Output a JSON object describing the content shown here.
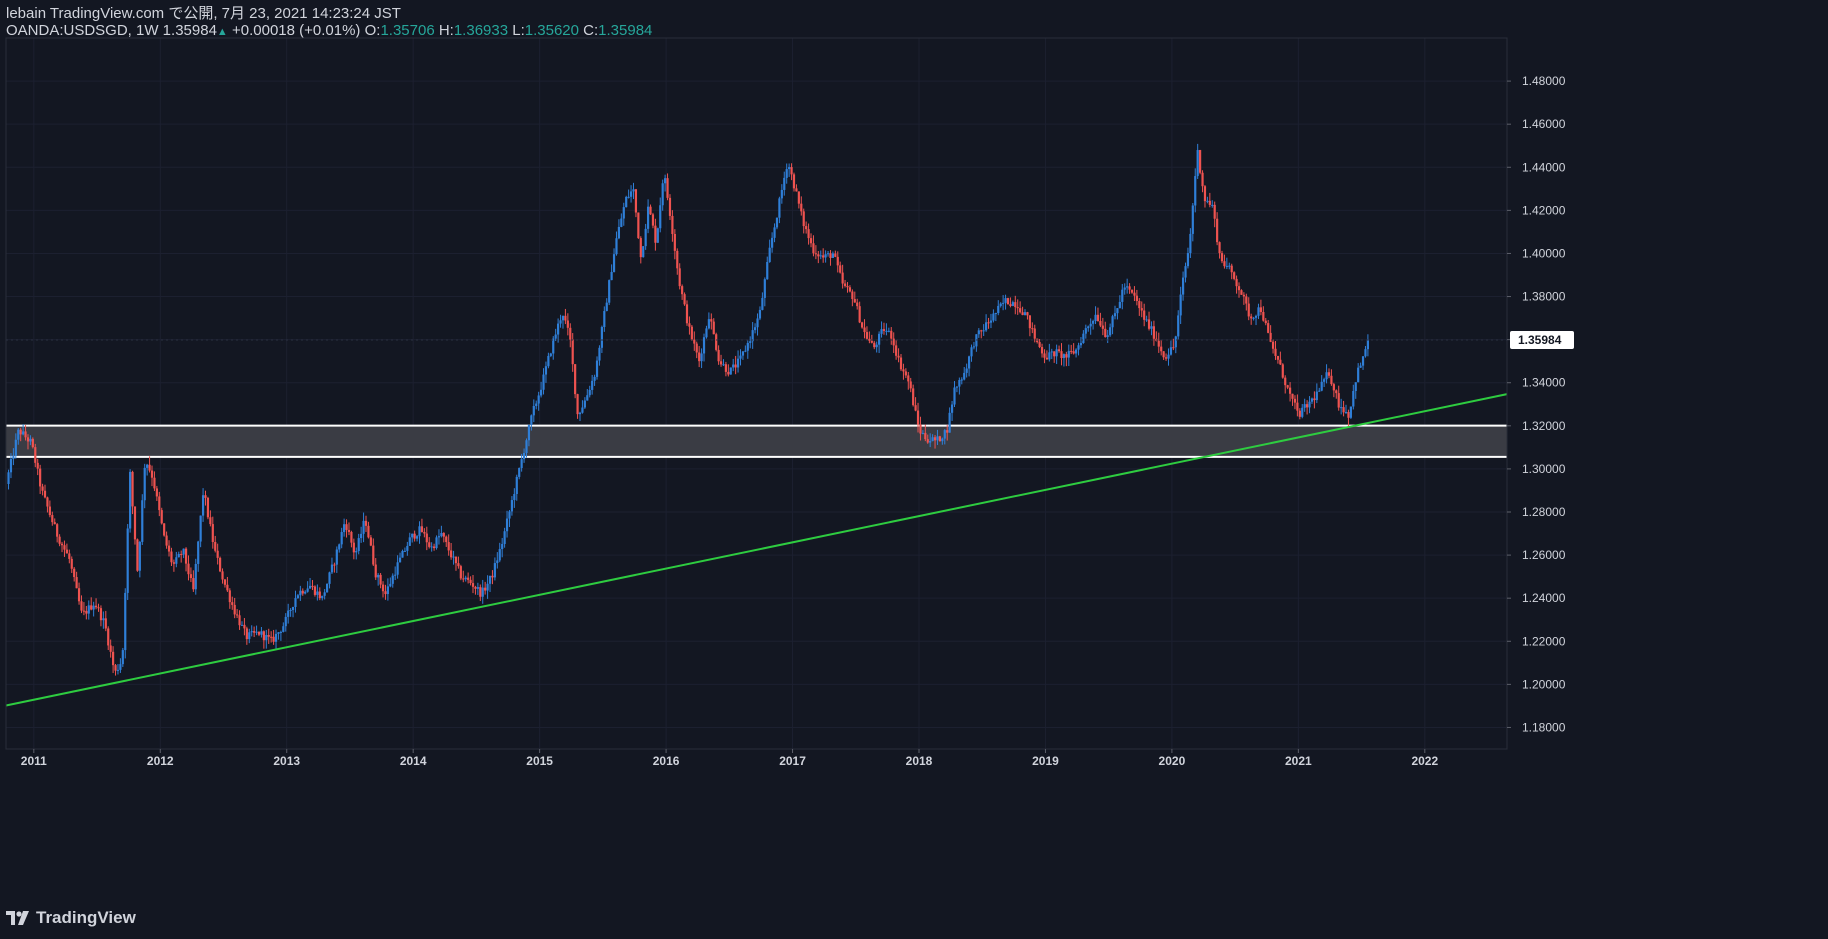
{
  "header": {
    "author_line": "lebain TradingView.com で公開, 7月 23, 2021 14:23:24 JST",
    "symbol_label": "OANDA:USDSGD, 1W 1.35984",
    "change": "+0.00018 (+0.01%)",
    "open_label": "O:",
    "open_value": "1.35706",
    "high_label": "H:",
    "high_value": "1.36933",
    "low_label": "L:",
    "low_value": "1.35620",
    "close_label": "C:",
    "close_value": "1.35984"
  },
  "footer": {
    "brand": "TradingView"
  },
  "colors": {
    "background": "#131722",
    "up": "#2f7fd8",
    "down": "#ef5350",
    "trendline": "#2ecc40",
    "zone_fill": "#3a3c44",
    "zone_border": "#ffffff",
    "axis_text": "#d1d4dc",
    "price_tag_bg": "#ffffff",
    "price_tag_text": "#131722"
  },
  "chart_data": {
    "type": "candlestick",
    "interval": "1W",
    "symbol": "OANDA:USDSGD",
    "ylim": [
      1.17,
      1.5
    ],
    "xlim": [
      2010.78,
      2022.65
    ],
    "y_ticks": [
      "1.48000",
      "1.46000",
      "1.44000",
      "1.42000",
      "1.40000",
      "1.38000",
      "1.36000",
      "1.34000",
      "1.32000",
      "1.30000",
      "1.28000",
      "1.26000",
      "1.24000",
      "1.22000",
      "1.20000",
      "1.18000"
    ],
    "x_ticks": [
      "2011",
      "2012",
      "2013",
      "2014",
      "2015",
      "2016",
      "2017",
      "2018",
      "2019",
      "2020",
      "2021",
      "2022"
    ],
    "last_price": "1.35984",
    "path": [
      [
        2010.8,
        1.293
      ],
      [
        2010.9,
        1.318
      ],
      [
        2011.0,
        1.312
      ],
      [
        2011.08,
        1.29
      ],
      [
        2011.2,
        1.27
      ],
      [
        2011.3,
        1.258
      ],
      [
        2011.4,
        1.232
      ],
      [
        2011.5,
        1.238
      ],
      [
        2011.58,
        1.228
      ],
      [
        2011.66,
        1.205
      ],
      [
        2011.72,
        1.212
      ],
      [
        2011.78,
        1.298
      ],
      [
        2011.84,
        1.252
      ],
      [
        2011.9,
        1.305
      ],
      [
        2011.96,
        1.296
      ],
      [
        2012.05,
        1.268
      ],
      [
        2012.12,
        1.255
      ],
      [
        2012.2,
        1.262
      ],
      [
        2012.28,
        1.243
      ],
      [
        2012.36,
        1.29
      ],
      [
        2012.45,
        1.262
      ],
      [
        2012.52,
        1.248
      ],
      [
        2012.6,
        1.235
      ],
      [
        2012.7,
        1.222
      ],
      [
        2012.8,
        1.224
      ],
      [
        2012.9,
        1.22
      ],
      [
        2013.0,
        1.228
      ],
      [
        2013.1,
        1.242
      ],
      [
        2013.2,
        1.246
      ],
      [
        2013.3,
        1.24
      ],
      [
        2013.4,
        1.258
      ],
      [
        2013.48,
        1.276
      ],
      [
        2013.56,
        1.26
      ],
      [
        2013.64,
        1.277
      ],
      [
        2013.72,
        1.252
      ],
      [
        2013.8,
        1.242
      ],
      [
        2013.9,
        1.256
      ],
      [
        2014.0,
        1.268
      ],
      [
        2014.08,
        1.272
      ],
      [
        2014.16,
        1.263
      ],
      [
        2014.24,
        1.27
      ],
      [
        2014.32,
        1.26
      ],
      [
        2014.4,
        1.25
      ],
      [
        2014.48,
        1.247
      ],
      [
        2014.56,
        1.242
      ],
      [
        2014.64,
        1.25
      ],
      [
        2014.72,
        1.265
      ],
      [
        2014.8,
        1.285
      ],
      [
        2014.88,
        1.305
      ],
      [
        2014.96,
        1.325
      ],
      [
        2015.04,
        1.34
      ],
      [
        2015.12,
        1.358
      ],
      [
        2015.2,
        1.373
      ],
      [
        2015.26,
        1.36
      ],
      [
        2015.32,
        1.325
      ],
      [
        2015.38,
        1.332
      ],
      [
        2015.46,
        1.345
      ],
      [
        2015.54,
        1.375
      ],
      [
        2015.62,
        1.405
      ],
      [
        2015.7,
        1.425
      ],
      [
        2015.76,
        1.43
      ],
      [
        2015.82,
        1.398
      ],
      [
        2015.88,
        1.422
      ],
      [
        2015.94,
        1.405
      ],
      [
        2016.0,
        1.438
      ],
      [
        2016.06,
        1.415
      ],
      [
        2016.12,
        1.388
      ],
      [
        2016.2,
        1.365
      ],
      [
        2016.28,
        1.35
      ],
      [
        2016.36,
        1.372
      ],
      [
        2016.44,
        1.35
      ],
      [
        2016.52,
        1.345
      ],
      [
        2016.6,
        1.35
      ],
      [
        2016.68,
        1.36
      ],
      [
        2016.76,
        1.372
      ],
      [
        2016.84,
        1.402
      ],
      [
        2016.92,
        1.425
      ],
      [
        2016.98,
        1.443
      ],
      [
        2017.04,
        1.43
      ],
      [
        2017.1,
        1.415
      ],
      [
        2017.18,
        1.402
      ],
      [
        2017.26,
        1.398
      ],
      [
        2017.34,
        1.4
      ],
      [
        2017.42,
        1.385
      ],
      [
        2017.5,
        1.38
      ],
      [
        2017.58,
        1.364
      ],
      [
        2017.66,
        1.356
      ],
      [
        2017.74,
        1.365
      ],
      [
        2017.8,
        1.362
      ],
      [
        2017.86,
        1.35
      ],
      [
        2017.94,
        1.34
      ],
      [
        2018.02,
        1.318
      ],
      [
        2018.08,
        1.314
      ],
      [
        2018.16,
        1.313
      ],
      [
        2018.24,
        1.318
      ],
      [
        2018.3,
        1.337
      ],
      [
        2018.38,
        1.345
      ],
      [
        2018.46,
        1.36
      ],
      [
        2018.54,
        1.366
      ],
      [
        2018.62,
        1.372
      ],
      [
        2018.7,
        1.378
      ],
      [
        2018.78,
        1.377
      ],
      [
        2018.86,
        1.372
      ],
      [
        2018.94,
        1.36
      ],
      [
        2019.02,
        1.352
      ],
      [
        2019.1,
        1.354
      ],
      [
        2019.18,
        1.352
      ],
      [
        2019.26,
        1.355
      ],
      [
        2019.34,
        1.365
      ],
      [
        2019.42,
        1.372
      ],
      [
        2019.5,
        1.362
      ],
      [
        2019.58,
        1.373
      ],
      [
        2019.64,
        1.385
      ],
      [
        2019.72,
        1.38
      ],
      [
        2019.8,
        1.37
      ],
      [
        2019.88,
        1.362
      ],
      [
        2019.96,
        1.352
      ],
      [
        2020.04,
        1.357
      ],
      [
        2020.1,
        1.385
      ],
      [
        2020.16,
        1.405
      ],
      [
        2020.22,
        1.448
      ],
      [
        2020.28,
        1.425
      ],
      [
        2020.34,
        1.422
      ],
      [
        2020.4,
        1.398
      ],
      [
        2020.48,
        1.392
      ],
      [
        2020.56,
        1.383
      ],
      [
        2020.64,
        1.37
      ],
      [
        2020.72,
        1.375
      ],
      [
        2020.8,
        1.358
      ],
      [
        2020.86,
        1.35
      ],
      [
        2020.94,
        1.336
      ],
      [
        2021.02,
        1.325
      ],
      [
        2021.1,
        1.33
      ],
      [
        2021.18,
        1.336
      ],
      [
        2021.26,
        1.345
      ],
      [
        2021.34,
        1.33
      ],
      [
        2021.42,
        1.325
      ],
      [
        2021.48,
        1.344
      ],
      [
        2021.54,
        1.352
      ],
      [
        2021.56,
        1.36
      ]
    ],
    "support_zone": {
      "upper": 1.3201,
      "lower": 1.3056
    },
    "trendline": {
      "from": [
        2010.78,
        1.1902
      ],
      "to": [
        2022.65,
        1.3347
      ]
    }
  }
}
